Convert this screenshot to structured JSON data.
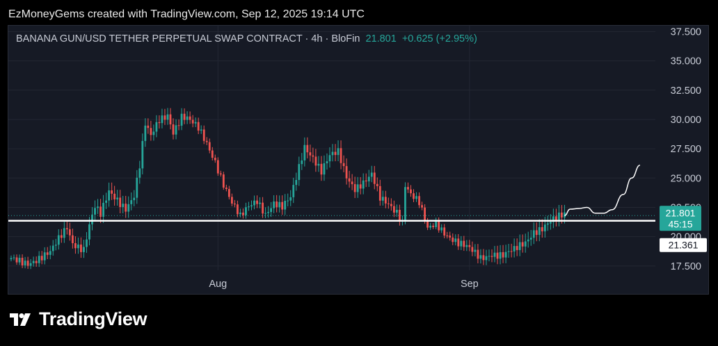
{
  "header": {
    "text": "EzMoneyGems created with TradingView.com, Sep 12, 2025 19:14 UTC"
  },
  "legend": {
    "symbol": "BANANA GUN/USD TETHER PERPETUAL SWAP CONTRACT · 4h · BloFin",
    "last": "21.801",
    "change": "+0.625 (+2.95%)"
  },
  "footer": {
    "brand": "TradingView"
  },
  "colors": {
    "up": "#26a69a",
    "down": "#ef5350",
    "background": "#161a25",
    "grid": "#232733",
    "axis_text": "#c8ccd6",
    "level_line": "#ffffff"
  },
  "chart_data": {
    "type": "candlestick",
    "timeframe": "4h",
    "ylim": [
      15.0,
      38.0
    ],
    "y_ticks": [
      17.5,
      20.0,
      22.5,
      25.0,
      27.5,
      30.0,
      32.5,
      35.0,
      37.5
    ],
    "y_tick_labels": [
      "17.500",
      "20.000",
      "22.500",
      "25.000",
      "27.500",
      "30.000",
      "32.500",
      "35.000",
      "37.500"
    ],
    "x_labels": [
      "Aug",
      "Sep"
    ],
    "x_label_bar_index": [
      74,
      164
    ],
    "price_anchors": [
      {
        "bar": 0,
        "price": 18.0
      },
      {
        "bar": 6,
        "price": 17.8
      },
      {
        "bar": 14,
        "price": 18.6
      },
      {
        "bar": 20,
        "price": 20.8
      },
      {
        "bar": 22,
        "price": 19.5
      },
      {
        "bar": 26,
        "price": 19.0
      },
      {
        "bar": 28,
        "price": 21.0
      },
      {
        "bar": 30,
        "price": 22.5
      },
      {
        "bar": 32,
        "price": 21.8
      },
      {
        "bar": 35,
        "price": 23.8
      },
      {
        "bar": 38,
        "price": 23.2
      },
      {
        "bar": 41,
        "price": 22.5
      },
      {
        "bar": 44,
        "price": 23.5
      },
      {
        "bar": 46,
        "price": 26.0
      },
      {
        "bar": 48,
        "price": 29.5
      },
      {
        "bar": 50,
        "price": 28.5
      },
      {
        "bar": 53,
        "price": 30.0
      },
      {
        "bar": 56,
        "price": 30.5
      },
      {
        "bar": 58,
        "price": 29.0
      },
      {
        "bar": 61,
        "price": 30.2
      },
      {
        "bar": 63,
        "price": 30.0
      },
      {
        "bar": 67,
        "price": 29.2
      },
      {
        "bar": 70,
        "price": 28.0
      },
      {
        "bar": 73,
        "price": 26.5
      },
      {
        "bar": 76,
        "price": 24.5
      },
      {
        "bar": 79,
        "price": 22.8
      },
      {
        "bar": 82,
        "price": 21.6
      },
      {
        "bar": 85,
        "price": 22.6
      },
      {
        "bar": 88,
        "price": 23.2
      },
      {
        "bar": 91,
        "price": 22.0
      },
      {
        "bar": 94,
        "price": 22.8
      },
      {
        "bar": 97,
        "price": 22.4
      },
      {
        "bar": 100,
        "price": 23.3
      },
      {
        "bar": 103,
        "price": 26.0
      },
      {
        "bar": 105,
        "price": 27.8
      },
      {
        "bar": 108,
        "price": 26.8
      },
      {
        "bar": 111,
        "price": 25.5
      },
      {
        "bar": 114,
        "price": 26.8
      },
      {
        "bar": 117,
        "price": 27.2
      },
      {
        "bar": 120,
        "price": 25.2
      },
      {
        "bar": 123,
        "price": 24.2
      },
      {
        "bar": 126,
        "price": 24.6
      },
      {
        "bar": 129,
        "price": 25.2
      },
      {
        "bar": 132,
        "price": 23.2
      },
      {
        "bar": 135,
        "price": 22.8
      },
      {
        "bar": 138,
        "price": 22.2
      },
      {
        "bar": 140,
        "price": 21.3
      },
      {
        "bar": 141,
        "price": 24.5
      },
      {
        "bar": 143,
        "price": 23.6
      },
      {
        "bar": 146,
        "price": 22.8
      },
      {
        "bar": 149,
        "price": 20.6
      },
      {
        "bar": 152,
        "price": 21.2
      },
      {
        "bar": 156,
        "price": 20.2
      },
      {
        "bar": 160,
        "price": 19.4
      },
      {
        "bar": 164,
        "price": 18.9
      },
      {
        "bar": 168,
        "price": 18.2
      },
      {
        "bar": 172,
        "price": 18.6
      },
      {
        "bar": 176,
        "price": 18.4
      },
      {
        "bar": 180,
        "price": 18.8
      },
      {
        "bar": 184,
        "price": 19.5
      },
      {
        "bar": 187,
        "price": 20.5
      },
      {
        "bar": 190,
        "price": 20.8
      },
      {
        "bar": 193,
        "price": 21.3
      },
      {
        "bar": 196,
        "price": 21.6
      },
      {
        "bar": 198,
        "price": 21.8
      }
    ],
    "total_bars": 199,
    "horizontal_level": 21.361,
    "last_price": 21.801,
    "countdown": "45:15",
    "projection": [
      {
        "bar": 198,
        "price": 21.8
      },
      {
        "bar": 200,
        "price": 22.35
      },
      {
        "bar": 203,
        "price": 22.4
      },
      {
        "bar": 206,
        "price": 22.5
      },
      {
        "bar": 209,
        "price": 22.0
      },
      {
        "bar": 212,
        "price": 22.0
      },
      {
        "bar": 215,
        "price": 22.3
      },
      {
        "bar": 219,
        "price": 23.6
      },
      {
        "bar": 222,
        "price": 25.0
      },
      {
        "bar": 225,
        "price": 26.1
      }
    ]
  }
}
